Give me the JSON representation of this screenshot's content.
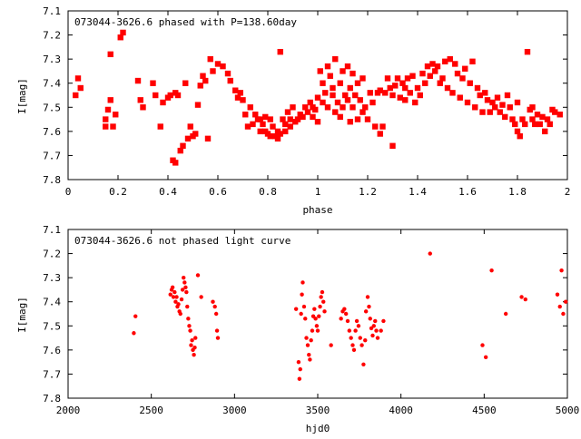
{
  "chart_data": [
    {
      "type": "scatter",
      "title": "073044-3626.6 phased with P=138.60day",
      "xlabel": "phase",
      "ylabel": "I[mag]",
      "xlim": [
        0,
        2
      ],
      "ylim": [
        7.8,
        7.1
      ],
      "y_inverted": true,
      "marker_color": "#ff0000",
      "x_ticks": [
        "0",
        "0.2",
        "0.4",
        "0.6",
        "0.8",
        "1",
        "1.2",
        "1.4",
        "1.6",
        "1.8",
        "2"
      ],
      "y_ticks": [
        "7.1",
        "7.2",
        "7.3",
        "7.4",
        "7.5",
        "7.6",
        "7.7",
        "7.8"
      ],
      "x_tick_values": [
        0,
        0.2,
        0.4,
        0.6,
        0.8,
        1.0,
        1.2,
        1.4,
        1.6,
        1.8,
        2.0
      ],
      "y_tick_values": [
        7.1,
        7.2,
        7.3,
        7.4,
        7.5,
        7.6,
        7.7,
        7.8
      ],
      "points": [
        [
          0.03,
          7.45
        ],
        [
          0.04,
          7.38
        ],
        [
          0.05,
          7.42
        ],
        [
          0.15,
          7.55
        ],
        [
          0.15,
          7.58
        ],
        [
          0.16,
          7.51
        ],
        [
          0.17,
          7.28
        ],
        [
          0.17,
          7.47
        ],
        [
          0.18,
          7.58
        ],
        [
          0.19,
          7.53
        ],
        [
          0.21,
          7.21
        ],
        [
          0.22,
          7.19
        ],
        [
          0.28,
          7.39
        ],
        [
          0.29,
          7.47
        ],
        [
          0.3,
          7.5
        ],
        [
          0.34,
          7.4
        ],
        [
          0.35,
          7.45
        ],
        [
          0.37,
          7.58
        ],
        [
          0.38,
          7.48
        ],
        [
          0.4,
          7.46
        ],
        [
          0.41,
          7.45
        ],
        [
          0.42,
          7.72
        ],
        [
          0.43,
          7.73
        ],
        [
          0.43,
          7.44
        ],
        [
          0.44,
          7.45
        ],
        [
          0.45,
          7.68
        ],
        [
          0.46,
          7.66
        ],
        [
          0.47,
          7.4
        ],
        [
          0.48,
          7.63
        ],
        [
          0.49,
          7.58
        ],
        [
          0.5,
          7.62
        ],
        [
          0.51,
          7.61
        ],
        [
          0.52,
          7.49
        ],
        [
          0.53,
          7.41
        ],
        [
          0.54,
          7.37
        ],
        [
          0.55,
          7.39
        ],
        [
          0.56,
          7.63
        ],
        [
          0.57,
          7.3
        ],
        [
          0.58,
          7.35
        ],
        [
          0.6,
          7.32
        ],
        [
          0.62,
          7.33
        ],
        [
          0.64,
          7.36
        ],
        [
          0.65,
          7.39
        ],
        [
          0.67,
          7.43
        ],
        [
          0.68,
          7.46
        ],
        [
          0.69,
          7.44
        ],
        [
          0.7,
          7.47
        ],
        [
          0.71,
          7.53
        ],
        [
          0.72,
          7.58
        ],
        [
          0.73,
          7.5
        ],
        [
          0.74,
          7.57
        ],
        [
          0.75,
          7.53
        ],
        [
          0.76,
          7.55
        ],
        [
          0.77,
          7.55
        ],
        [
          0.77,
          7.6
        ],
        [
          0.78,
          7.57
        ],
        [
          0.79,
          7.54
        ],
        [
          0.79,
          7.6
        ],
        [
          0.8,
          7.61
        ],
        [
          0.81,
          7.55
        ],
        [
          0.81,
          7.62
        ],
        [
          0.82,
          7.58
        ],
        [
          0.83,
          7.62
        ],
        [
          0.84,
          7.6
        ],
        [
          0.84,
          7.63
        ],
        [
          0.85,
          7.27
        ],
        [
          0.85,
          7.61
        ],
        [
          0.86,
          7.55
        ],
        [
          0.87,
          7.57
        ],
        [
          0.87,
          7.6
        ],
        [
          0.88,
          7.52
        ],
        [
          0.89,
          7.55
        ],
        [
          0.89,
          7.58
        ],
        [
          0.9,
          7.5
        ],
        [
          0.91,
          7.56
        ],
        [
          0.92,
          7.55
        ],
        [
          0.93,
          7.53
        ],
        [
          0.94,
          7.54
        ],
        [
          0.95,
          7.5
        ],
        [
          0.96,
          7.52
        ],
        [
          0.97,
          7.48
        ],
        [
          0.98,
          7.54
        ],
        [
          0.98,
          7.5
        ],
        [
          0.99,
          7.51
        ],
        [
          1.0,
          7.56
        ],
        [
          1.0,
          7.46
        ],
        [
          1.01,
          7.35
        ],
        [
          1.02,
          7.4
        ],
        [
          1.02,
          7.48
        ],
        [
          1.03,
          7.44
        ],
        [
          1.04,
          7.33
        ],
        [
          1.04,
          7.5
        ],
        [
          1.05,
          7.37
        ],
        [
          1.06,
          7.42
        ],
        [
          1.06,
          7.45
        ],
        [
          1.07,
          7.3
        ],
        [
          1.07,
          7.52
        ],
        [
          1.08,
          7.48
        ],
        [
          1.09,
          7.4
        ],
        [
          1.09,
          7.54
        ],
        [
          1.1,
          7.35
        ],
        [
          1.1,
          7.5
        ],
        [
          1.11,
          7.45
        ],
        [
          1.12,
          7.47
        ],
        [
          1.12,
          7.33
        ],
        [
          1.13,
          7.42
        ],
        [
          1.13,
          7.56
        ],
        [
          1.14,
          7.36
        ],
        [
          1.14,
          7.5
        ],
        [
          1.15,
          7.45
        ],
        [
          1.16,
          7.55
        ],
        [
          1.16,
          7.4
        ],
        [
          1.17,
          7.47
        ],
        [
          1.18,
          7.52
        ],
        [
          1.18,
          7.38
        ],
        [
          1.19,
          7.5
        ],
        [
          1.2,
          7.55
        ],
        [
          1.21,
          7.44
        ],
        [
          1.22,
          7.48
        ],
        [
          1.23,
          7.58
        ],
        [
          1.24,
          7.44
        ],
        [
          1.25,
          7.61
        ],
        [
          1.25,
          7.43
        ],
        [
          1.26,
          7.58
        ],
        [
          1.27,
          7.44
        ],
        [
          1.28,
          7.38
        ],
        [
          1.29,
          7.42
        ],
        [
          1.3,
          7.66
        ],
        [
          1.3,
          7.45
        ],
        [
          1.31,
          7.41
        ],
        [
          1.32,
          7.38
        ],
        [
          1.33,
          7.46
        ],
        [
          1.34,
          7.4
        ],
        [
          1.35,
          7.42
        ],
        [
          1.35,
          7.47
        ],
        [
          1.36,
          7.38
        ],
        [
          1.37,
          7.44
        ],
        [
          1.38,
          7.37
        ],
        [
          1.39,
          7.48
        ],
        [
          1.4,
          7.42
        ],
        [
          1.41,
          7.45
        ],
        [
          1.42,
          7.36
        ],
        [
          1.43,
          7.4
        ],
        [
          1.44,
          7.33
        ],
        [
          1.45,
          7.37
        ],
        [
          1.46,
          7.32
        ],
        [
          1.47,
          7.35
        ],
        [
          1.48,
          7.33
        ],
        [
          1.49,
          7.4
        ],
        [
          1.5,
          7.38
        ],
        [
          1.51,
          7.31
        ],
        [
          1.52,
          7.42
        ],
        [
          1.53,
          7.3
        ],
        [
          1.54,
          7.44
        ],
        [
          1.55,
          7.32
        ],
        [
          1.56,
          7.36
        ],
        [
          1.57,
          7.46
        ],
        [
          1.58,
          7.38
        ],
        [
          1.59,
          7.34
        ],
        [
          1.6,
          7.48
        ],
        [
          1.61,
          7.4
        ],
        [
          1.62,
          7.31
        ],
        [
          1.63,
          7.5
        ],
        [
          1.64,
          7.42
        ],
        [
          1.65,
          7.45
        ],
        [
          1.66,
          7.52
        ],
        [
          1.67,
          7.44
        ],
        [
          1.68,
          7.47
        ],
        [
          1.69,
          7.52
        ],
        [
          1.7,
          7.48
        ],
        [
          1.71,
          7.5
        ],
        [
          1.72,
          7.46
        ],
        [
          1.73,
          7.52
        ],
        [
          1.74,
          7.49
        ],
        [
          1.75,
          7.54
        ],
        [
          1.76,
          7.45
        ],
        [
          1.77,
          7.5
        ],
        [
          1.78,
          7.55
        ],
        [
          1.79,
          7.57
        ],
        [
          1.8,
          7.6
        ],
        [
          1.8,
          7.48
        ],
        [
          1.81,
          7.62
        ],
        [
          1.82,
          7.55
        ],
        [
          1.83,
          7.57
        ],
        [
          1.84,
          7.27
        ],
        [
          1.85,
          7.51
        ],
        [
          1.86,
          7.55
        ],
        [
          1.86,
          7.5
        ],
        [
          1.87,
          7.57
        ],
        [
          1.88,
          7.53
        ],
        [
          1.89,
          7.57
        ],
        [
          1.9,
          7.54
        ],
        [
          1.91,
          7.6
        ],
        [
          1.92,
          7.55
        ],
        [
          1.93,
          7.57
        ],
        [
          1.94,
          7.51
        ],
        [
          1.95,
          7.52
        ],
        [
          1.97,
          7.53
        ]
      ]
    },
    {
      "type": "scatter",
      "title": "073044-3626.6 not phased light curve",
      "xlabel": "hjd0",
      "ylabel": "I[mag]",
      "xlim": [
        2000,
        5000
      ],
      "ylim": [
        7.8,
        7.1
      ],
      "y_inverted": true,
      "marker_color": "#ff0000",
      "x_ticks": [
        "2000",
        "2500",
        "3000",
        "3500",
        "4000",
        "4500",
        "5000"
      ],
      "y_ticks": [
        "7.1",
        "7.2",
        "7.3",
        "7.4",
        "7.5",
        "7.6",
        "7.7",
        "7.8"
      ],
      "x_tick_values": [
        2000,
        2500,
        3000,
        3500,
        4000,
        4500,
        5000
      ],
      "y_tick_values": [
        7.1,
        7.2,
        7.3,
        7.4,
        7.5,
        7.6,
        7.7,
        7.8
      ],
      "points": [
        [
          2395,
          7.53
        ],
        [
          2405,
          7.46
        ],
        [
          2615,
          7.37
        ],
        [
          2622,
          7.35
        ],
        [
          2628,
          7.34
        ],
        [
          2633,
          7.38
        ],
        [
          2640,
          7.36
        ],
        [
          2646,
          7.4
        ],
        [
          2652,
          7.38
        ],
        [
          2657,
          7.42
        ],
        [
          2663,
          7.41
        ],
        [
          2669,
          7.44
        ],
        [
          2675,
          7.45
        ],
        [
          2682,
          7.39
        ],
        [
          2688,
          7.35
        ],
        [
          2694,
          7.3
        ],
        [
          2700,
          7.32
        ],
        [
          2706,
          7.34
        ],
        [
          2711,
          7.36
        ],
        [
          2716,
          7.42
        ],
        [
          2722,
          7.47
        ],
        [
          2728,
          7.5
        ],
        [
          2734,
          7.52
        ],
        [
          2739,
          7.58
        ],
        [
          2745,
          7.56
        ],
        [
          2750,
          7.6
        ],
        [
          2756,
          7.62
        ],
        [
          2761,
          7.59
        ],
        [
          2765,
          7.55
        ],
        [
          2780,
          7.29
        ],
        [
          2800,
          7.38
        ],
        [
          2870,
          7.4
        ],
        [
          2882,
          7.42
        ],
        [
          2890,
          7.45
        ],
        [
          2895,
          7.52
        ],
        [
          2900,
          7.55
        ],
        [
          3370,
          7.43
        ],
        [
          3385,
          7.65
        ],
        [
          3390,
          7.72
        ],
        [
          3395,
          7.68
        ],
        [
          3400,
          7.45
        ],
        [
          3405,
          7.37
        ],
        [
          3410,
          7.32
        ],
        [
          3418,
          7.42
        ],
        [
          3425,
          7.47
        ],
        [
          3432,
          7.55
        ],
        [
          3440,
          7.58
        ],
        [
          3447,
          7.62
        ],
        [
          3453,
          7.64
        ],
        [
          3460,
          7.56
        ],
        [
          3467,
          7.52
        ],
        [
          3473,
          7.46
        ],
        [
          3480,
          7.43
        ],
        [
          3487,
          7.47
        ],
        [
          3494,
          7.5
        ],
        [
          3500,
          7.52
        ],
        [
          3507,
          7.46
        ],
        [
          3514,
          7.42
        ],
        [
          3520,
          7.38
        ],
        [
          3527,
          7.36
        ],
        [
          3534,
          7.4
        ],
        [
          3541,
          7.44
        ],
        [
          3580,
          7.58
        ],
        [
          3640,
          7.47
        ],
        [
          3650,
          7.44
        ],
        [
          3660,
          7.43
        ],
        [
          3670,
          7.45
        ],
        [
          3680,
          7.48
        ],
        [
          3690,
          7.52
        ],
        [
          3700,
          7.55
        ],
        [
          3710,
          7.58
        ],
        [
          3718,
          7.6
        ],
        [
          3727,
          7.52
        ],
        [
          3735,
          7.48
        ],
        [
          3745,
          7.5
        ],
        [
          3755,
          7.55
        ],
        [
          3765,
          7.58
        ],
        [
          3775,
          7.66
        ],
        [
          3785,
          7.56
        ],
        [
          3790,
          7.44
        ],
        [
          3800,
          7.38
        ],
        [
          3808,
          7.42
        ],
        [
          3815,
          7.47
        ],
        [
          3822,
          7.51
        ],
        [
          3830,
          7.54
        ],
        [
          3837,
          7.5
        ],
        [
          3845,
          7.48
        ],
        [
          3852,
          7.52
        ],
        [
          3860,
          7.55
        ],
        [
          3880,
          7.52
        ],
        [
          3895,
          7.48
        ],
        [
          4175,
          7.2
        ],
        [
          4490,
          7.58
        ],
        [
          4510,
          7.63
        ],
        [
          4545,
          7.27
        ],
        [
          4630,
          7.45
        ],
        [
          4725,
          7.38
        ],
        [
          4748,
          7.39
        ],
        [
          4940,
          7.37
        ],
        [
          4955,
          7.42
        ],
        [
          4965,
          7.27
        ],
        [
          4975,
          7.45
        ],
        [
          4990,
          7.4
        ]
      ]
    }
  ]
}
